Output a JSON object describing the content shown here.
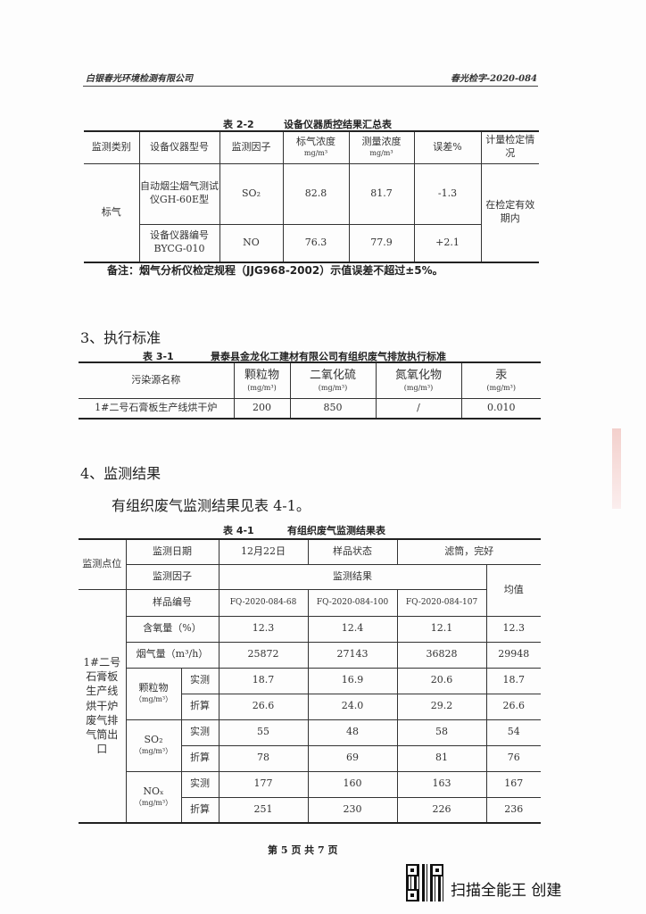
{
  "header": {
    "company": "白银春光环境检测有限公司",
    "doc_no": "春光检字-2020-084"
  },
  "t22": {
    "caption_no": "表 2-2",
    "caption": "设备仪器质控结果汇总表",
    "headers": [
      "监测类别",
      "设备仪器型号",
      "监测因子",
      "标气浓度",
      "测量浓度",
      "误差%",
      "计量检定情况"
    ],
    "unit": "mg/m³",
    "category": "标气",
    "status": "在检定有效期内",
    "rows": [
      {
        "instrument": "自动烟尘烟气测试仪GH-60E型",
        "factor": "SO₂",
        "std": "82.8",
        "measured": "81.7",
        "error": "-1.3"
      },
      {
        "instrument": "设备仪器编号BYCG-010",
        "factor": "NO",
        "std": "76.3",
        "measured": "77.9",
        "error": "+2.1"
      }
    ],
    "note": "备注：烟气分析仪检定规程（JJG968-2002）示值误差不超过±5%。"
  },
  "sec3": "3、执行标准",
  "t31": {
    "caption_no": "表 3-1",
    "caption": "景泰县金龙化工建材有限公司有组织废气排放执行标准",
    "headers": [
      "污染源名称",
      "颗粒物",
      "二氧化硫",
      "氮氧化物",
      "汞"
    ],
    "unit": "(mg/m³)",
    "row": [
      "1#二号石膏板生产线烘干炉",
      "200",
      "850",
      "/",
      "0.010"
    ]
  },
  "sec4": "4、监测结果",
  "para": "有组织废气监测结果见表 4-1。",
  "t41": {
    "caption_no": "表 4-1",
    "caption": "有组织废气监测结果表",
    "point_label": "监测点位",
    "date_label": "监测日期",
    "date": "12月22日",
    "state_label": "样品状态",
    "state": "滤筒，完好",
    "factor_label": "监测因子",
    "result_label": "监测结果",
    "avg_label": "均值",
    "sample_label": "样品编号",
    "samples": [
      "FQ-2020-084-68",
      "FQ-2020-084-100",
      "FQ-2020-084-107"
    ],
    "point": "1#二号石膏板生产线烘干炉废气排气筒出口",
    "o2": {
      "label": "含氧量（%）",
      "values": [
        "12.3",
        "12.4",
        "12.1",
        "12.3"
      ]
    },
    "flow": {
      "label": "烟气量（m³/h）",
      "values": [
        "25872",
        "27143",
        "36828",
        "29948"
      ]
    },
    "measured_label": "实测",
    "converted_label": "折算",
    "pollutants": [
      {
        "name": "颗粒物",
        "unit": "（mg/m³）",
        "measured": [
          "18.7",
          "16.9",
          "20.6",
          "18.7"
        ],
        "converted": [
          "26.6",
          "24.0",
          "29.2",
          "26.6"
        ]
      },
      {
        "name": "SO₂",
        "unit": "（mg/m³）",
        "measured": [
          "55",
          "48",
          "58",
          "54"
        ],
        "converted": [
          "78",
          "69",
          "81",
          "76"
        ]
      },
      {
        "name": "NOₓ",
        "unit": "（mg/m³）",
        "measured": [
          "177",
          "160",
          "163",
          "167"
        ],
        "converted": [
          "251",
          "230",
          "226",
          "236"
        ]
      }
    ]
  },
  "footer": "第 5 页 共 7 页",
  "watermark": "扫描全能王 创建"
}
